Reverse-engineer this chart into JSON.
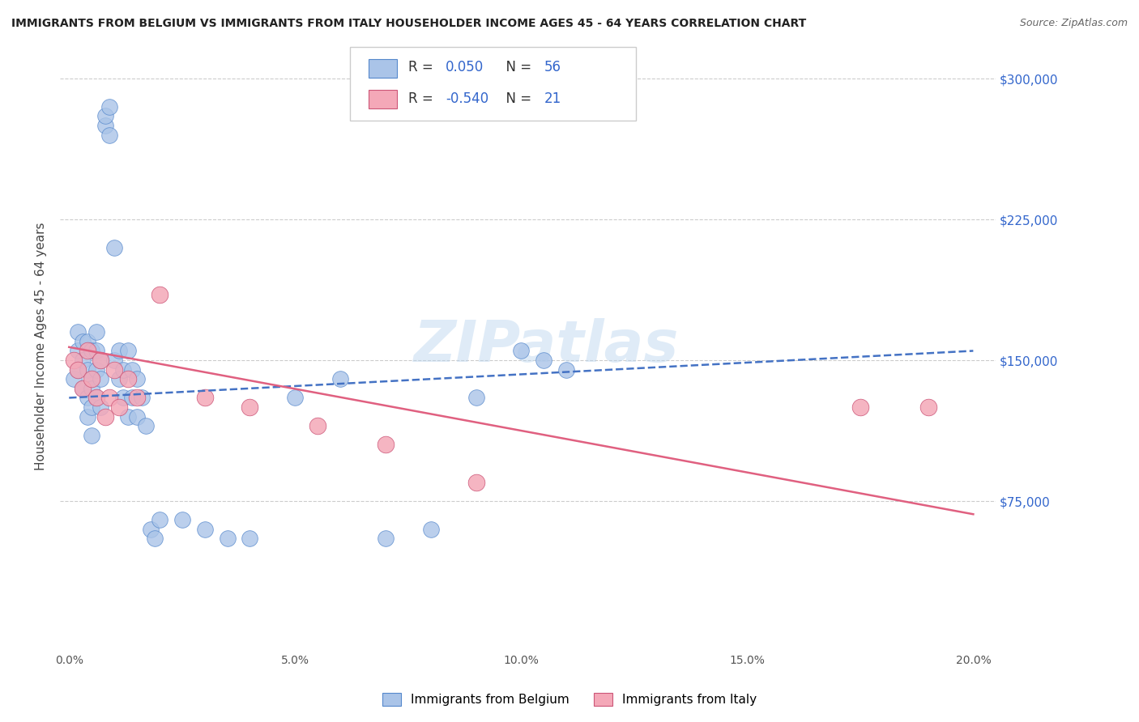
{
  "title": "IMMIGRANTS FROM BELGIUM VS IMMIGRANTS FROM ITALY HOUSEHOLDER INCOME AGES 45 - 64 YEARS CORRELATION CHART",
  "source": "Source: ZipAtlas.com",
  "ylabel": "Householder Income Ages 45 - 64 years",
  "xlabel_ticks": [
    "0.0%",
    "5.0%",
    "10.0%",
    "15.0%",
    "20.0%"
  ],
  "xlabel_vals": [
    0.0,
    0.05,
    0.1,
    0.15,
    0.2
  ],
  "ylabel_ticks": [
    0,
    75000,
    150000,
    225000,
    300000
  ],
  "ylabel_labels": [
    "",
    "$75,000",
    "$150,000",
    "$225,000",
    "$300,000"
  ],
  "xlim": [
    -0.002,
    0.205
  ],
  "ylim": [
    -5000,
    320000
  ],
  "belgium_R": 0.05,
  "belgium_N": 56,
  "italy_R": -0.54,
  "italy_N": 21,
  "belgium_color": "#aac4e8",
  "italy_color": "#f4a8b8",
  "belgium_line_color": "#4472c4",
  "italy_line_color": "#e06080",
  "watermark": "ZIPatlas",
  "bel_trend_x": [
    0.0,
    0.2
  ],
  "bel_trend_y": [
    130000,
    155000
  ],
  "ita_trend_x": [
    0.0,
    0.2
  ],
  "ita_trend_y": [
    157000,
    68000
  ],
  "belgium_x": [
    0.001,
    0.002,
    0.002,
    0.002,
    0.003,
    0.003,
    0.003,
    0.004,
    0.004,
    0.004,
    0.004,
    0.005,
    0.005,
    0.005,
    0.005,
    0.005,
    0.006,
    0.006,
    0.006,
    0.006,
    0.007,
    0.007,
    0.007,
    0.008,
    0.008,
    0.009,
    0.009,
    0.01,
    0.01,
    0.011,
    0.011,
    0.012,
    0.012,
    0.013,
    0.013,
    0.014,
    0.014,
    0.015,
    0.015,
    0.016,
    0.017,
    0.018,
    0.019,
    0.02,
    0.025,
    0.03,
    0.035,
    0.04,
    0.05,
    0.06,
    0.07,
    0.08,
    0.09,
    0.1,
    0.105,
    0.11
  ],
  "belgium_y": [
    140000,
    155000,
    165000,
    145000,
    150000,
    160000,
    135000,
    145000,
    130000,
    160000,
    120000,
    140000,
    125000,
    155000,
    135000,
    110000,
    155000,
    145000,
    130000,
    165000,
    150000,
    140000,
    125000,
    275000,
    280000,
    270000,
    285000,
    150000,
    210000,
    140000,
    155000,
    145000,
    130000,
    155000,
    120000,
    145000,
    130000,
    140000,
    120000,
    130000,
    115000,
    60000,
    55000,
    65000,
    65000,
    60000,
    55000,
    55000,
    130000,
    140000,
    55000,
    60000,
    130000,
    155000,
    150000,
    145000
  ],
  "italy_x": [
    0.001,
    0.002,
    0.003,
    0.004,
    0.005,
    0.006,
    0.007,
    0.008,
    0.009,
    0.01,
    0.011,
    0.013,
    0.015,
    0.02,
    0.03,
    0.04,
    0.055,
    0.07,
    0.09,
    0.175,
    0.19
  ],
  "italy_y": [
    150000,
    145000,
    135000,
    155000,
    140000,
    130000,
    150000,
    120000,
    130000,
    145000,
    125000,
    140000,
    130000,
    185000,
    130000,
    125000,
    115000,
    105000,
    85000,
    125000,
    125000
  ]
}
